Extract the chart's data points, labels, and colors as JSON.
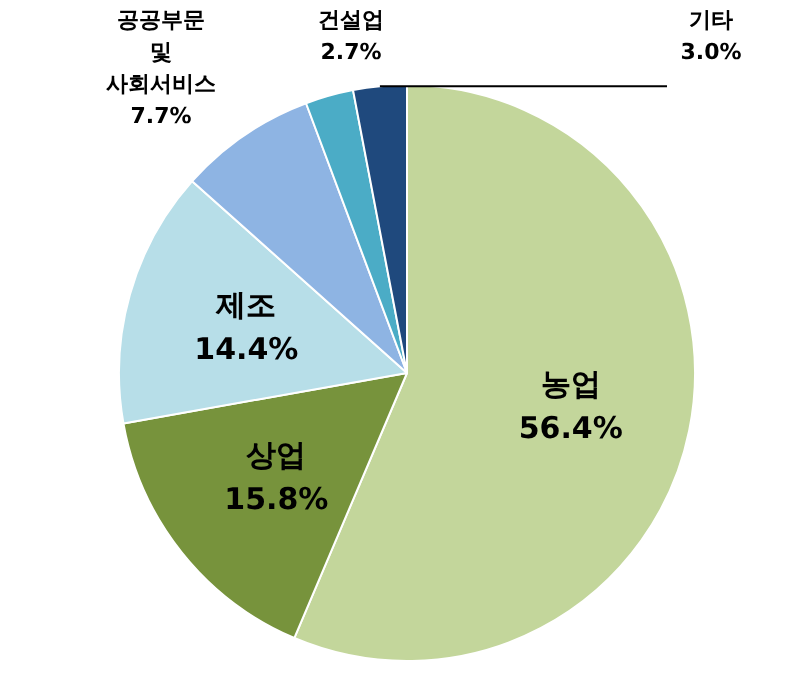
{
  "chart_data": {
    "type": "pie",
    "categories": [
      "농업",
      "상업",
      "제조",
      "공공부문 및 사회서비스",
      "건설업",
      "기타"
    ],
    "values": [
      56.4,
      15.8,
      14.4,
      7.7,
      2.7,
      3.0
    ],
    "value_labels": [
      "56.4%",
      "15.8%",
      "14.4%",
      "7.7%",
      "2.7%",
      "3.0%"
    ],
    "colors": [
      "#c3d69b",
      "#77933c",
      "#b7dee8",
      "#8eb4e3",
      "#4bacc6",
      "#1f497d"
    ]
  }
}
